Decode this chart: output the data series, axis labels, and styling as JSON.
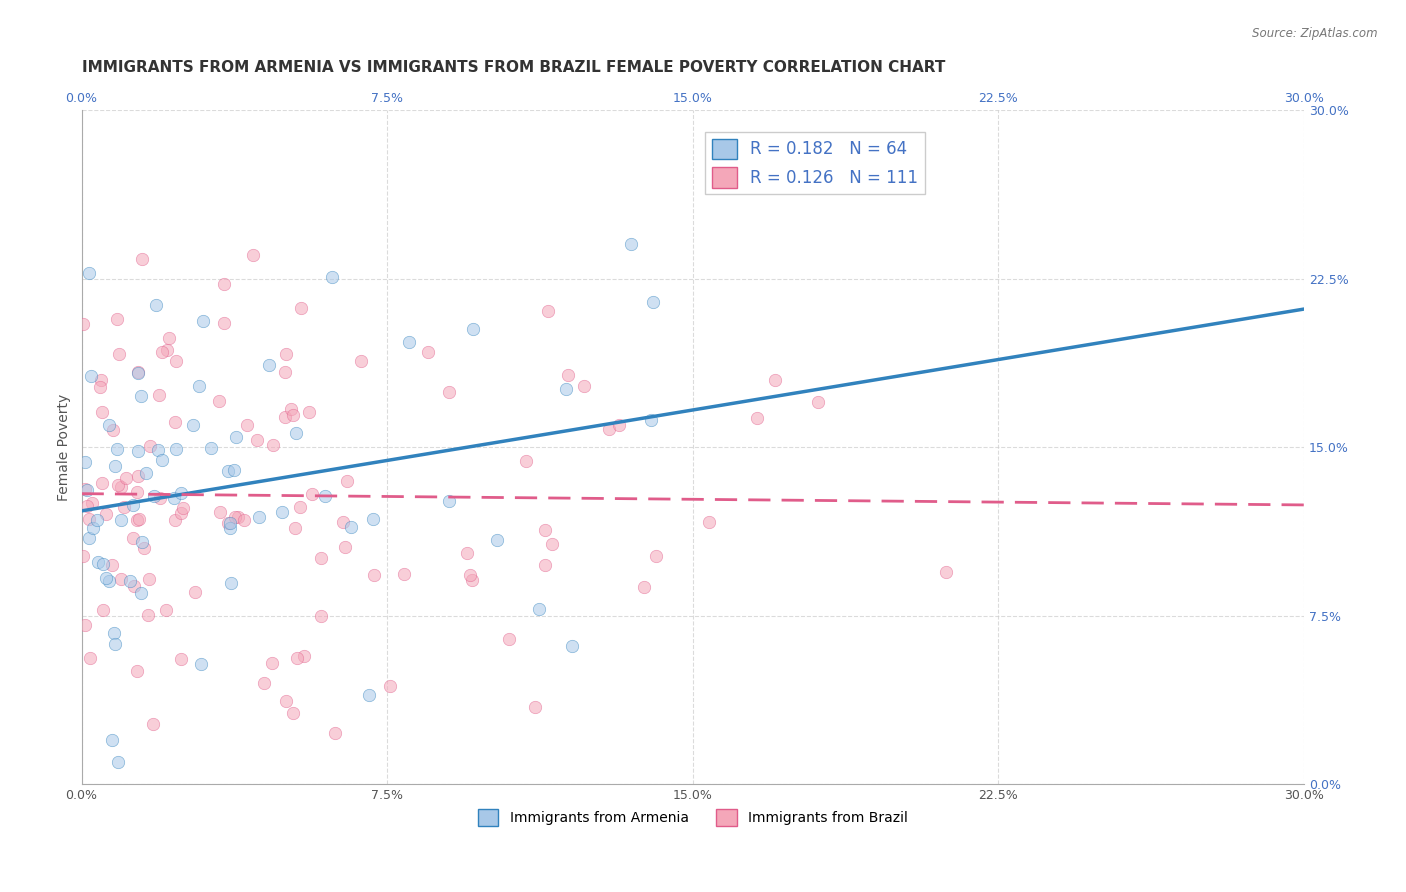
{
  "title": "IMMIGRANTS FROM ARMENIA VS IMMIGRANTS FROM BRAZIL FEMALE POVERTY CORRELATION CHART",
  "source": "Source: ZipAtlas.com",
  "xlabel_bottom": "",
  "ylabel": "Female Poverty",
  "legend_label_1": "Immigrants from Armenia",
  "legend_label_2": "Immigrants from Brazil",
  "r1": 0.182,
  "n1": 64,
  "r2": 0.126,
  "n2": 111,
  "color_armenia": "#6baed6",
  "color_brazil": "#fc8d59",
  "color_armenia_scatter": "#a8c8e8",
  "color_brazil_scatter": "#f4a7b9",
  "color_armenia_line": "#3182bd",
  "color_brazil_line": "#e05c8a",
  "xlim": [
    0.0,
    0.3
  ],
  "ylim": [
    0.0,
    0.3
  ],
  "xticks": [
    0.0,
    0.075,
    0.15,
    0.225,
    0.3
  ],
  "yticks": [
    0.0,
    0.075,
    0.15,
    0.225,
    0.3
  ],
  "xticklabels": [
    "0.0%",
    "7.5%",
    "15.0%",
    "22.5%",
    "30.0%"
  ],
  "yticklabels": [
    "0.0%",
    "7.5%",
    "15.0%",
    "22.5%",
    "30.0%"
  ],
  "right_ytick_labels": [
    "30.0%",
    "22.5%",
    "15.0%",
    "7.5%"
  ],
  "background_color": "#ffffff",
  "grid_color": "#cccccc",
  "title_fontsize": 11,
  "axis_label_fontsize": 10,
  "tick_fontsize": 9,
  "legend_fontsize": 12,
  "scatter_alpha": 0.55,
  "scatter_size": 80,
  "seed": 42
}
